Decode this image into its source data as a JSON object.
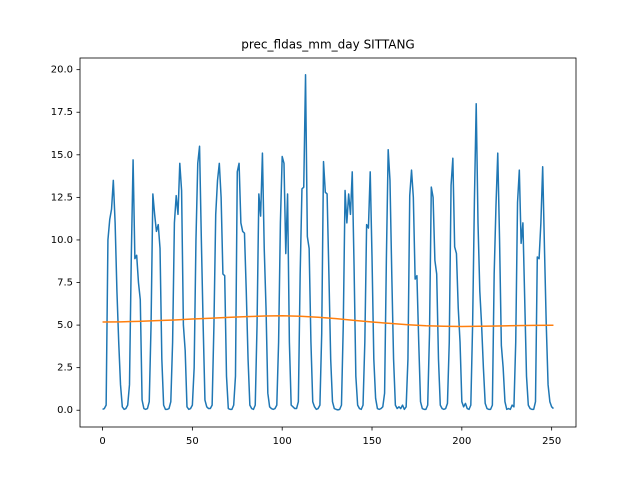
{
  "chart_data": {
    "type": "line",
    "title": "prec_fldas_mm_day SITTANG",
    "xlim": [
      -12.55,
      263.55
    ],
    "xticks": [
      0,
      50,
      100,
      150,
      200,
      250
    ],
    "ylim": [
      -0.985,
      20.685
    ],
    "yticks": [
      {
        "value": 0,
        "label": "0.0"
      },
      2.5,
      {
        "value": 5,
        "label": "5.0"
      },
      7.5,
      {
        "value": 10,
        "label": "10.0"
      },
      12.5,
      {
        "value": 15,
        "label": "15.0"
      },
      17.5,
      {
        "value": 20,
        "label": "20.0"
      }
    ],
    "series": [
      {
        "color": "#1f77b4",
        "x": [
          0,
          1,
          2,
          3,
          4,
          5,
          6,
          7,
          8,
          9,
          10,
          11,
          12,
          13,
          14,
          15,
          16,
          17,
          18,
          19,
          20,
          21,
          22,
          23,
          24,
          25,
          26,
          27,
          28,
          29,
          30,
          31,
          32,
          33,
          34,
          35,
          36,
          37,
          38,
          39,
          40,
          41,
          42,
          43,
          44,
          45,
          46,
          47,
          48,
          49,
          50,
          51,
          52,
          53,
          54,
          55,
          56,
          57,
          58,
          59,
          60,
          61,
          62,
          63,
          64,
          65,
          66,
          67,
          68,
          69,
          70,
          71,
          72,
          73,
          74,
          75,
          76,
          77,
          78,
          79,
          80,
          81,
          82,
          83,
          84,
          85,
          86,
          87,
          88,
          89,
          90,
          91,
          92,
          93,
          94,
          95,
          96,
          97,
          98,
          99,
          100,
          101,
          102,
          103,
          104,
          105,
          106,
          107,
          108,
          109,
          110,
          111,
          112,
          113,
          114,
          115,
          116,
          117,
          118,
          119,
          120,
          121,
          122,
          123,
          124,
          125,
          126,
          127,
          128,
          129,
          130,
          131,
          132,
          133,
          134,
          135,
          136,
          137,
          138,
          139,
          140,
          141,
          142,
          143,
          144,
          145,
          146,
          147,
          148,
          149,
          150,
          151,
          152,
          153,
          154,
          155,
          156,
          157,
          158,
          159,
          160,
          161,
          162,
          163,
          164,
          165,
          166,
          167,
          168,
          169,
          170,
          171,
          172,
          173,
          174,
          175,
          176,
          177,
          178,
          179,
          180,
          181,
          182,
          183,
          184,
          185,
          186,
          187,
          188,
          189,
          190,
          191,
          192,
          193,
          194,
          195,
          196,
          197,
          198,
          199,
          200,
          201,
          202,
          203,
          204,
          205,
          206,
          207,
          208,
          209,
          210,
          211,
          212,
          213,
          214,
          215,
          216,
          217,
          218,
          219,
          220,
          221,
          222,
          223,
          224,
          225,
          226,
          227,
          228,
          229,
          230,
          231,
          232,
          233,
          234,
          235,
          236,
          237,
          238,
          239,
          240,
          241,
          242,
          243,
          244,
          245,
          246,
          247,
          248,
          249,
          250,
          251
        ],
        "values": [
          0.05,
          0.1,
          0.3,
          10,
          11.2,
          11.8,
          13.5,
          11,
          7,
          4,
          1.5,
          0.2,
          0.05,
          0.1,
          0.3,
          1.5,
          9,
          14.7,
          8.9,
          9.1,
          7.5,
          6.5,
          0.6,
          0.1,
          0.05,
          0.1,
          0.5,
          5,
          12.7,
          11.5,
          10.5,
          10.9,
          9.5,
          3,
          0.3,
          0.05,
          0.05,
          0.1,
          0.5,
          4,
          11,
          12.6,
          11.5,
          14.5,
          12.9,
          5,
          3.5,
          0.2,
          0.05,
          0.1,
          0.3,
          2.5,
          10,
          14.5,
          15.5,
          10,
          5,
          0.6,
          0.2,
          0.1,
          0.1,
          0.3,
          5,
          11.5,
          13.5,
          14.5,
          12.5,
          8,
          7.9,
          2,
          0.1,
          0.05,
          0.05,
          0.3,
          2,
          14,
          14.5,
          11,
          10.5,
          10.4,
          7,
          3,
          0.3,
          0.1,
          0.05,
          0.3,
          5,
          12.7,
          11.4,
          15.1,
          9.5,
          6,
          1,
          0.2,
          0.1,
          0.05,
          0.1,
          0.3,
          4,
          11,
          14.9,
          14.5,
          9.2,
          12.7,
          4,
          0.3,
          0.2,
          0.1,
          0.1,
          0.5,
          8,
          13,
          13.1,
          19.7,
          10.2,
          9.5,
          4,
          0.5,
          0.2,
          0.05,
          0.1,
          0.3,
          4.5,
          14.6,
          12.8,
          12.7,
          8,
          3,
          0.5,
          0.1,
          0.05,
          0.02,
          0.05,
          0.3,
          5,
          12.9,
          11,
          12.7,
          11.5,
          14,
          8.5,
          2,
          0.3,
          0.1,
          0.05,
          0.3,
          4,
          10.9,
          10.7,
          14,
          9,
          3,
          0.7,
          0.1,
          0.05,
          0.1,
          0.2,
          1,
          8.9,
          15.3,
          13.5,
          8,
          3,
          0.3,
          0.1,
          0.2,
          0.1,
          0.3,
          0.05,
          0.2,
          3,
          12.6,
          14.1,
          12.5,
          7.7,
          7.9,
          4,
          0.5,
          0.1,
          0.05,
          0.05,
          0.3,
          4.5,
          13.1,
          12.5,
          8.8,
          8,
          3,
          0.3,
          0.1,
          0.05,
          0.1,
          0.4,
          4,
          13.2,
          14.8,
          9.6,
          9.2,
          6,
          4,
          0.5,
          0.2,
          0.4,
          0.1,
          0.05,
          0.3,
          5,
          12.3,
          18,
          11,
          7,
          5,
          2.5,
          0.4,
          0.1,
          0.05,
          0.05,
          0.3,
          8,
          12,
          15.1,
          10,
          3.8,
          2.5,
          0.5,
          0.05,
          0.1,
          0.05,
          0.3,
          0.2,
          4,
          12.2,
          14.1,
          9.8,
          11,
          6.5,
          2,
          0.3,
          0.1,
          0.05,
          0.05,
          0.5,
          9,
          8.9,
          11,
          14.3,
          9.5,
          5,
          1.5,
          0.5,
          0.2,
          0.1
        ]
      },
      {
        "color": "#ff7f0e",
        "x": [
          0,
          10,
          20,
          30,
          40,
          50,
          60,
          70,
          80,
          90,
          100,
          110,
          120,
          130,
          140,
          150,
          160,
          170,
          180,
          190,
          200,
          210,
          220,
          230,
          240,
          250,
          251
        ],
        "values": [
          5.18,
          5.19,
          5.22,
          5.26,
          5.3,
          5.36,
          5.4,
          5.45,
          5.5,
          5.53,
          5.55,
          5.52,
          5.46,
          5.38,
          5.28,
          5.18,
          5.1,
          5.02,
          4.96,
          4.93,
          4.92,
          4.93,
          4.95,
          4.97,
          4.98,
          4.99,
          4.99
        ]
      }
    ]
  }
}
